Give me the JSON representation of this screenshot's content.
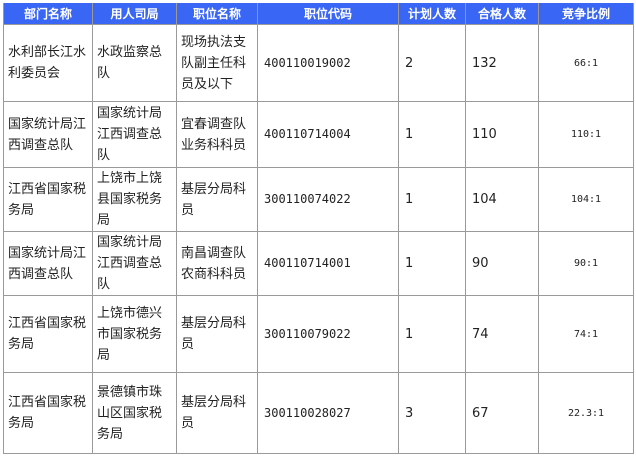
{
  "table": {
    "header_color": "#3a66f5",
    "columns": [
      "部门名称",
      "用人司局",
      "职位名称",
      "职位代码",
      "计划人数",
      "合格人数",
      "竞争比例"
    ],
    "rows": [
      [
        "水利部长江水利委员会",
        "水政监察总队",
        "现场执法支队副主任科员及以下",
        "400110019002",
        "2",
        "132",
        "66:1"
      ],
      [
        "国家统计局江西调查总队",
        "国家统计局江西调查总队",
        "宜春调查队业务科科员",
        "400110714004",
        "1",
        "110",
        "110:1"
      ],
      [
        "江西省国家税务局",
        "上饶市上饶县国家税务局",
        "基层分局科员",
        "300110074022",
        "1",
        "104",
        "104:1"
      ],
      [
        "国家统计局江西调查总队",
        "国家统计局江西调查总队",
        "南昌调查队农商科科员",
        "400110714001",
        "1",
        "90",
        "90:1"
      ],
      [
        "江西省国家税务局",
        "上饶市德兴市国家税务局",
        "基层分局科员",
        "300110079022",
        "1",
        "74",
        "74:1"
      ],
      [
        "江西省国家税务局",
        "景德镇市珠山区国家税务局",
        "基层分局科员",
        "300110028027",
        "3",
        "67",
        "22.3:1"
      ]
    ]
  }
}
